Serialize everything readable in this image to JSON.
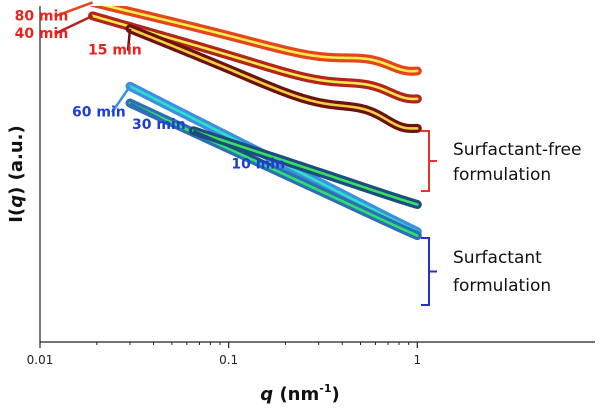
{
  "chart_data": {
    "type": "scatter",
    "xlabel_symbol": "q",
    "xlabel_unit": " (nm",
    "xlabel_exp": "-1",
    "xlabel_close": ")",
    "ylabel_prefix": "I(",
    "ylabel_symbol": "q",
    "ylabel_suffix": ") (a.u.)",
    "xscale": "log",
    "xlim": [
      0.01,
      1
    ],
    "x_ticks": [
      {
        "value": 0.01,
        "label": "0.01"
      },
      {
        "value": 0.1,
        "label": "0.1"
      },
      {
        "value": 1,
        "label": "1"
      }
    ],
    "y_ticks_shown": false,
    "grid": false,
    "groups": [
      {
        "label_line1": "Surfactant-free",
        "label_line2": "formulation",
        "bracket_color": "#e8322a",
        "series": [
          "80 min",
          "40 min",
          "15 min"
        ]
      },
      {
        "label_line1": "Surfactant",
        "label_line2": "formulation",
        "bracket_color": "#2233cc",
        "series": [
          "60 min",
          "30 min",
          "10 min"
        ]
      }
    ],
    "series": [
      {
        "name": "80 min",
        "label_color": "#e8231e",
        "data_color": "#e4451e",
        "fit_color": "#f2ee4a",
        "x_start": 0.019,
        "x_end": 1.0,
        "level": 0.98,
        "slope": 0.2,
        "osc_amp": 0.035,
        "osc_freq": 105,
        "osc_decay": 1.0
      },
      {
        "name": "40 min",
        "label_color": "#e8231e",
        "data_color": "#b3241c",
        "fit_color": "#f2e84a",
        "x_start": 0.019,
        "x_end": 1.0,
        "level": 0.94,
        "slope": 0.25,
        "osc_amp": 0.035,
        "osc_freq": 105,
        "osc_decay": 1.0
      },
      {
        "name": "15 min",
        "label_color": "#e8231e",
        "data_color": "#6e1210",
        "fit_color": "#f0d040",
        "x_start": 0.03,
        "x_end": 1.0,
        "level": 0.9,
        "slope": 0.35,
        "osc_amp": 0.04,
        "osc_freq": 110,
        "osc_decay": 1.1
      },
      {
        "name": "60 min",
        "label_color": "#1e3cd8",
        "data_color": "#3d8fe0",
        "fit_color": "#2ee0c8",
        "x_start": 0.03,
        "x_end": 1.0,
        "level": 0.75,
        "slope": 0.55,
        "osc_amp": 0.012,
        "osc_freq": 30,
        "osc_decay": 1.0
      },
      {
        "name": "30 min",
        "label_color": "#1e3cd8",
        "data_color": "#2d6fb4",
        "fit_color": "#2ee06e",
        "x_start": 0.03,
        "x_end": 1.0,
        "level": 0.7,
        "slope": 0.5,
        "osc_amp": 0.012,
        "osc_freq": 30,
        "osc_decay": 1.0
      },
      {
        "name": "10 min",
        "label_color": "#1e3cd8",
        "data_color": "#1d4c80",
        "fit_color": "#38e060",
        "x_start": 0.065,
        "x_end": 1.0,
        "level": 0.62,
        "slope": 0.35,
        "osc_amp": 0.01,
        "osc_freq": 30,
        "osc_decay": 1.0
      }
    ]
  }
}
